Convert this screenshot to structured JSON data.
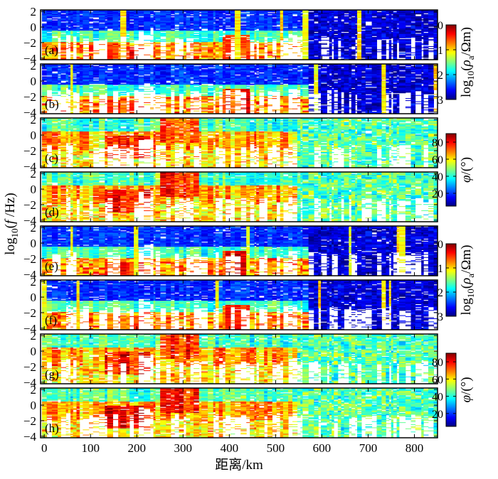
{
  "chart_data": {
    "type": "heatmap",
    "title": "",
    "xlabel": "距离/km",
    "ylabel": "log10(f /Hz)",
    "ylabel_parts": {
      "base": "log",
      "sub": "10",
      "paren_open": "(",
      "var": "f",
      "unit": " /Hz)"
    },
    "xlim": [
      -8,
      850
    ],
    "ylim": [
      -4.2,
      2.2
    ],
    "x_ticks": [
      0,
      100,
      200,
      300,
      400,
      500,
      600,
      700,
      800
    ],
    "y_ticks": [
      2,
      0,
      -2,
      -4
    ],
    "panel_labels": [
      "(a)",
      "(b)",
      "(c)",
      "(d)",
      "(e)",
      "(f)",
      "(g)",
      "(h)"
    ],
    "panel_quantity": [
      "resistivity",
      "resistivity",
      "phase",
      "phase",
      "resistivity",
      "resistivity",
      "phase",
      "phase"
    ],
    "colorbars": [
      {
        "quantity": "resistivity",
        "label_parts": {
          "base": "log",
          "sub": "10",
          "paren_open": "(",
          "var": "ρ",
          "var_sub": "a",
          "unit": "/Ωm)"
        },
        "ticks": [
          0,
          1,
          2,
          3
        ],
        "range": [
          0,
          3
        ],
        "colormap": "jet_reversed",
        "applies_to": [
          "(a)",
          "(b)"
        ]
      },
      {
        "quantity": "phase",
        "label_parts": {
          "var": "φ",
          "unit": "/(°)"
        },
        "ticks": [
          80,
          60,
          40,
          20
        ],
        "range": [
          5,
          90
        ],
        "colormap": "jet",
        "applies_to": [
          "(c)",
          "(d)"
        ]
      },
      {
        "quantity": "resistivity",
        "label_parts": {
          "base": "log",
          "sub": "10",
          "paren_open": "(",
          "var": "ρ",
          "var_sub": "a",
          "unit": "/Ωm)"
        },
        "ticks": [
          0,
          1,
          2,
          3
        ],
        "range": [
          0,
          3
        ],
        "colormap": "jet_reversed",
        "applies_to": [
          "(e)",
          "(f)"
        ]
      },
      {
        "quantity": "phase",
        "label_parts": {
          "var": "φ",
          "unit": "/(°)"
        },
        "ticks": [
          80,
          60,
          40,
          20
        ],
        "range": [
          5,
          90
        ],
        "colormap": "jet",
        "applies_to": [
          "(g)",
          "(h)"
        ]
      }
    ],
    "colors": {
      "jet_stops": [
        "#00007f",
        "#0000ff",
        "#007fff",
        "#00ffff",
        "#7fff7f",
        "#ffff00",
        "#ff7f00",
        "#ff0000",
        "#7f0000"
      ],
      "no_data": "#ffffff",
      "frame": "#000000"
    }
  }
}
